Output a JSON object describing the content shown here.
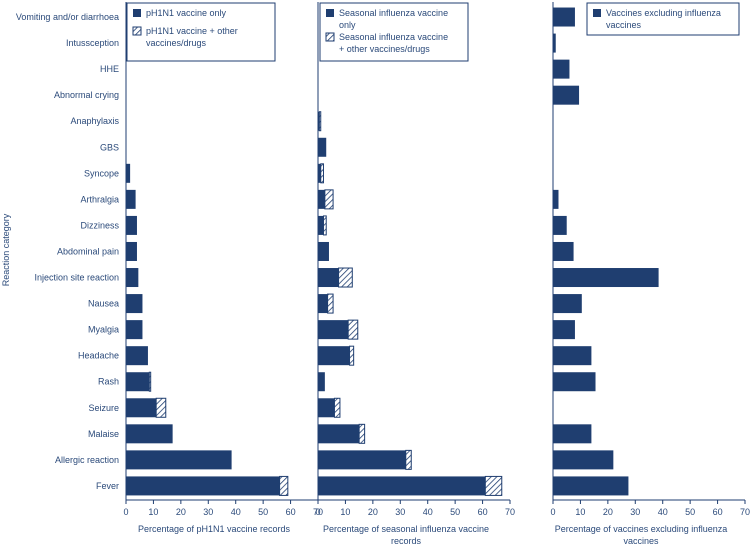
{
  "chart_data": {
    "type": "bar",
    "orientation": "horizontal",
    "stacked": true,
    "ylabel": "Reaction category",
    "categories": [
      "Vomiting and/or diarrhoea",
      "Intussception",
      "HHE",
      "Abnormal crying",
      "Anaphylaxis",
      "GBS",
      "Syncope",
      "Arthralgia",
      "Dizziness",
      "Abdominal pain",
      "Injection site reaction",
      "Nausea",
      "Myalgia",
      "Headache",
      "Rash",
      "Seizure",
      "Malaise",
      "Allergic reaction",
      "Fever"
    ],
    "panels": [
      {
        "xlabel": "Percentage of pH1N1 vaccine records",
        "xlim": [
          0,
          70
        ],
        "xticks": [
          0,
          10,
          20,
          30,
          40,
          50,
          60,
          70
        ],
        "series": [
          {
            "name": "pH1N1 vaccine only",
            "style": "solid",
            "values": [
              0,
              0,
              0,
              0,
              0,
              0,
              1.5,
              3.5,
              4,
              4,
              4.5,
              6,
              6,
              8,
              8.5,
              11,
              17,
              38.5,
              56
            ]
          },
          {
            "name": "pH1N1 vaccine + other vaccines/drugs",
            "style": "hatched",
            "values": [
              0,
              0,
              0,
              0,
              0,
              0,
              0,
              0,
              0,
              0,
              0,
              0,
              0,
              0,
              0.5,
              3.5,
              0,
              0,
              3
            ]
          }
        ]
      },
      {
        "xlabel": "Percentage of seasonal influenza vaccine records",
        "xlim": [
          0,
          70
        ],
        "xticks": [
          0,
          10,
          20,
          30,
          40,
          50,
          60,
          70
        ],
        "series": [
          {
            "name": "Seasonal influenza vaccine only",
            "style": "solid",
            "values": [
              0,
              0,
              0,
              0,
              0.5,
              3,
              1,
              2.5,
              2,
              4,
              7.5,
              3.5,
              11,
              11.5,
              2.5,
              6,
              15,
              32,
              61
            ]
          },
          {
            "name": "Seasonal influenza vaccine + other vaccines/drugs",
            "style": "hatched",
            "values": [
              0,
              0,
              0,
              0,
              0.5,
              0,
              1,
              3,
              1,
              0,
              5,
              2,
              3.5,
              1.5,
              0,
              2,
              2,
              2,
              6
            ]
          }
        ]
      },
      {
        "xlabel": "Percentage of vaccines excluding influenza vaccines",
        "xlim": [
          0,
          70
        ],
        "xticks": [
          0,
          10,
          20,
          30,
          40,
          50,
          60,
          70
        ],
        "series": [
          {
            "name": "Vaccines excluding influenza vaccines",
            "style": "solid",
            "values": [
              8,
              1,
              6,
              9.5,
              0,
              0,
              0,
              2,
              5,
              7.5,
              38.5,
              10.5,
              8,
              14,
              15.5,
              0,
              14,
              22,
              27.5
            ]
          }
        ]
      }
    ]
  }
}
